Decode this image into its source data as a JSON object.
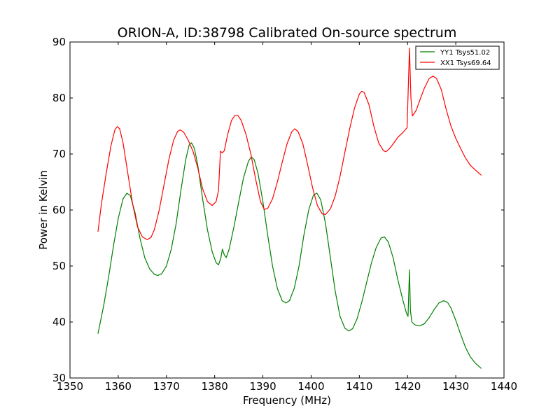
{
  "chart_data": {
    "type": "line",
    "title": "ORION-A, ID:38798 Calibrated On-source spectrum",
    "xlabel": "Frequency (MHz)",
    "ylabel": "Power in Kelvin",
    "xlim": [
      1350,
      1440
    ],
    "ylim": [
      30,
      90
    ],
    "xticks": [
      1350,
      1360,
      1370,
      1380,
      1390,
      1400,
      1410,
      1420,
      1430,
      1440
    ],
    "yticks": [
      30,
      40,
      50,
      60,
      70,
      80,
      90
    ],
    "grid": false,
    "legend_position": "top-right",
    "series": [
      {
        "name": "YY1 Tsys51.02",
        "color": "#008000",
        "points": [
          [
            1355.8,
            37.9
          ],
          [
            1357.0,
            43.0
          ],
          [
            1358.0,
            48.0
          ],
          [
            1359.0,
            53.5
          ],
          [
            1360.0,
            58.5
          ],
          [
            1361.0,
            62.0
          ],
          [
            1361.8,
            63.0
          ],
          [
            1362.5,
            62.6
          ],
          [
            1363.5,
            59.5
          ],
          [
            1364.5,
            55.0
          ],
          [
            1365.5,
            51.5
          ],
          [
            1366.5,
            49.5
          ],
          [
            1367.5,
            48.5
          ],
          [
            1368.2,
            48.3
          ],
          [
            1369.0,
            48.6
          ],
          [
            1370.0,
            50.0
          ],
          [
            1371.0,
            53.0
          ],
          [
            1372.0,
            57.5
          ],
          [
            1373.0,
            63.5
          ],
          [
            1374.0,
            69.0
          ],
          [
            1374.7,
            71.6
          ],
          [
            1375.2,
            72.0
          ],
          [
            1375.8,
            71.0
          ],
          [
            1376.5,
            68.0
          ],
          [
            1377.5,
            62.0
          ],
          [
            1378.5,
            56.5
          ],
          [
            1379.5,
            52.5
          ],
          [
            1380.3,
            50.6
          ],
          [
            1380.8,
            50.2
          ],
          [
            1381.3,
            51.5
          ],
          [
            1381.6,
            53.0
          ],
          [
            1382.0,
            52.0
          ],
          [
            1382.4,
            51.5
          ],
          [
            1383.0,
            53.0
          ],
          [
            1384.0,
            57.0
          ],
          [
            1385.0,
            61.5
          ],
          [
            1386.0,
            65.8
          ],
          [
            1387.0,
            68.7
          ],
          [
            1387.6,
            69.5
          ],
          [
            1388.2,
            69.0
          ],
          [
            1389.0,
            66.5
          ],
          [
            1390.0,
            61.5
          ],
          [
            1391.0,
            55.5
          ],
          [
            1392.0,
            50.0
          ],
          [
            1393.0,
            46.0
          ],
          [
            1394.0,
            43.8
          ],
          [
            1394.8,
            43.4
          ],
          [
            1395.5,
            43.8
          ],
          [
            1396.5,
            46.0
          ],
          [
            1397.5,
            50.0
          ],
          [
            1398.5,
            55.5
          ],
          [
            1399.5,
            60.0
          ],
          [
            1400.5,
            62.7
          ],
          [
            1401.2,
            63.0
          ],
          [
            1402.0,
            61.8
          ],
          [
            1403.0,
            57.5
          ],
          [
            1404.0,
            51.5
          ],
          [
            1405.0,
            45.5
          ],
          [
            1406.0,
            41.0
          ],
          [
            1407.0,
            38.9
          ],
          [
            1407.8,
            38.4
          ],
          [
            1408.6,
            38.8
          ],
          [
            1409.5,
            40.5
          ],
          [
            1410.5,
            43.5
          ],
          [
            1411.5,
            47.0
          ],
          [
            1412.5,
            50.5
          ],
          [
            1413.5,
            53.3
          ],
          [
            1414.5,
            55.0
          ],
          [
            1415.2,
            55.2
          ],
          [
            1416.0,
            54.3
          ],
          [
            1417.0,
            51.5
          ],
          [
            1418.0,
            47.5
          ],
          [
            1419.0,
            44.0
          ],
          [
            1419.8,
            41.5
          ],
          [
            1420.1,
            41.0
          ],
          [
            1420.4,
            49.3
          ],
          [
            1420.6,
            42.0
          ],
          [
            1420.9,
            40.0
          ],
          [
            1421.5,
            39.5
          ],
          [
            1422.5,
            39.3
          ],
          [
            1423.5,
            39.7
          ],
          [
            1424.5,
            40.8
          ],
          [
            1425.5,
            42.2
          ],
          [
            1426.5,
            43.4
          ],
          [
            1427.5,
            43.8
          ],
          [
            1428.3,
            43.5
          ],
          [
            1429.0,
            42.5
          ],
          [
            1430.0,
            40.3
          ],
          [
            1431.0,
            37.8
          ],
          [
            1432.0,
            35.5
          ],
          [
            1433.0,
            33.8
          ],
          [
            1434.0,
            32.7
          ],
          [
            1435.3,
            31.7
          ]
        ]
      },
      {
        "name": "XX1 Tsys69.64",
        "color": "#ff0000",
        "points": [
          [
            1355.8,
            56.1
          ],
          [
            1356.5,
            61.0
          ],
          [
            1357.5,
            66.5
          ],
          [
            1358.5,
            71.5
          ],
          [
            1359.3,
            74.3
          ],
          [
            1359.8,
            74.9
          ],
          [
            1360.3,
            74.5
          ],
          [
            1361.0,
            72.0
          ],
          [
            1362.0,
            66.5
          ],
          [
            1363.0,
            61.0
          ],
          [
            1364.0,
            57.0
          ],
          [
            1365.0,
            55.2
          ],
          [
            1366.0,
            54.7
          ],
          [
            1366.8,
            55.1
          ],
          [
            1367.5,
            56.5
          ],
          [
            1368.5,
            60.0
          ],
          [
            1369.5,
            64.5
          ],
          [
            1370.5,
            69.0
          ],
          [
            1371.5,
            72.5
          ],
          [
            1372.3,
            74.0
          ],
          [
            1372.8,
            74.3
          ],
          [
            1373.5,
            74.0
          ],
          [
            1374.5,
            72.5
          ],
          [
            1375.5,
            70.5
          ],
          [
            1376.5,
            67.5
          ],
          [
            1377.5,
            63.8
          ],
          [
            1378.5,
            61.5
          ],
          [
            1379.5,
            60.8
          ],
          [
            1380.3,
            61.5
          ],
          [
            1380.8,
            63.5
          ],
          [
            1381.2,
            70.5
          ],
          [
            1381.6,
            70.2
          ],
          [
            1382.0,
            70.6
          ],
          [
            1382.7,
            73.5
          ],
          [
            1383.5,
            76.0
          ],
          [
            1384.2,
            76.9
          ],
          [
            1384.8,
            76.9
          ],
          [
            1385.5,
            76.0
          ],
          [
            1386.5,
            73.5
          ],
          [
            1387.5,
            70.0
          ],
          [
            1388.5,
            65.5
          ],
          [
            1389.5,
            61.5
          ],
          [
            1390.3,
            60.1
          ],
          [
            1391.0,
            60.3
          ],
          [
            1392.0,
            62.0
          ],
          [
            1393.0,
            65.0
          ],
          [
            1394.0,
            68.5
          ],
          [
            1395.0,
            71.8
          ],
          [
            1396.0,
            74.0
          ],
          [
            1396.6,
            74.5
          ],
          [
            1397.3,
            74.0
          ],
          [
            1398.3,
            71.8
          ],
          [
            1399.3,
            68.0
          ],
          [
            1400.3,
            64.0
          ],
          [
            1401.3,
            60.8
          ],
          [
            1402.3,
            59.3
          ],
          [
            1403.0,
            59.2
          ],
          [
            1404.0,
            60.2
          ],
          [
            1405.0,
            62.5
          ],
          [
            1406.0,
            66.0
          ],
          [
            1407.0,
            70.3
          ],
          [
            1408.0,
            74.5
          ],
          [
            1409.0,
            78.2
          ],
          [
            1410.0,
            80.7
          ],
          [
            1410.5,
            81.2
          ],
          [
            1411.0,
            81.0
          ],
          [
            1412.0,
            78.8
          ],
          [
            1413.0,
            75.0
          ],
          [
            1414.0,
            72.0
          ],
          [
            1415.0,
            70.6
          ],
          [
            1415.5,
            70.4
          ],
          [
            1416.2,
            70.9
          ],
          [
            1417.0,
            71.8
          ],
          [
            1418.0,
            73.0
          ],
          [
            1419.0,
            73.8
          ],
          [
            1419.9,
            74.7
          ],
          [
            1420.4,
            88.9
          ],
          [
            1420.7,
            80.0
          ],
          [
            1421.0,
            76.8
          ],
          [
            1421.8,
            77.8
          ],
          [
            1422.5,
            79.5
          ],
          [
            1423.5,
            81.8
          ],
          [
            1424.5,
            83.5
          ],
          [
            1425.3,
            83.9
          ],
          [
            1426.0,
            83.5
          ],
          [
            1427.0,
            81.5
          ],
          [
            1428.0,
            78.0
          ],
          [
            1429.0,
            75.0
          ],
          [
            1430.0,
            72.8
          ],
          [
            1431.0,
            71.0
          ],
          [
            1432.0,
            69.3
          ],
          [
            1433.0,
            68.0
          ],
          [
            1434.0,
            67.2
          ],
          [
            1435.3,
            66.2
          ]
        ]
      }
    ]
  }
}
